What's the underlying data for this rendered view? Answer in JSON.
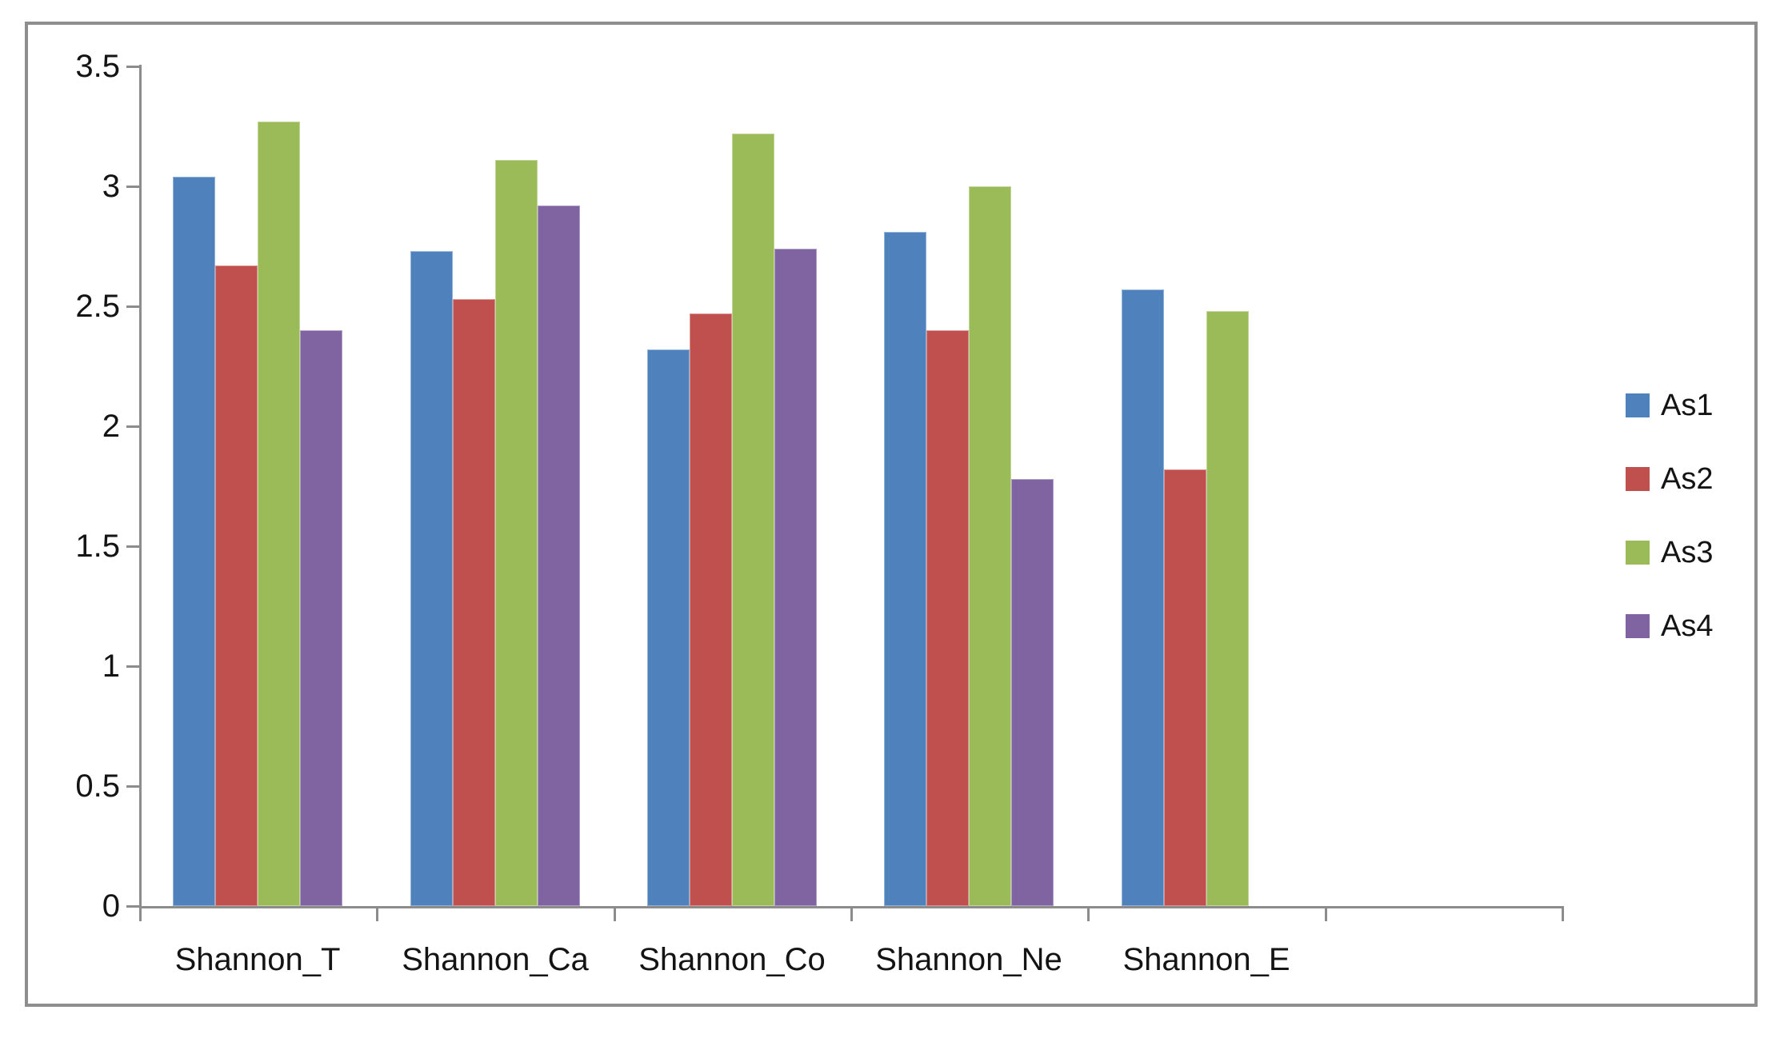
{
  "chart_data": {
    "type": "bar",
    "title": "",
    "xlabel": "",
    "ylabel": "",
    "categories": [
      "Shannon_T",
      "Shannon_Ca",
      "Shannon_Co",
      "Shannon_Ne",
      "Shannon_E"
    ],
    "series": [
      {
        "name": "As1",
        "color": "#4F81BD",
        "values": [
          3.04,
          2.73,
          2.32,
          2.81,
          2.57
        ]
      },
      {
        "name": "As2",
        "color": "#C0504D",
        "values": [
          2.67,
          2.53,
          2.47,
          2.4,
          1.82
        ]
      },
      {
        "name": "As3",
        "color": "#9BBB59",
        "values": [
          3.27,
          3.11,
          3.22,
          3.0,
          2.48
        ]
      },
      {
        "name": "As4",
        "color": "#8064A2",
        "values": [
          2.4,
          2.92,
          2.74,
          1.78,
          0
        ]
      }
    ],
    "ylim": [
      0,
      3.5
    ],
    "ytick_labels": [
      "0",
      "0.5",
      "1",
      "1.5",
      "2",
      "2.5",
      "3",
      "3.5"
    ],
    "x_slots": 6,
    "grid": false,
    "legend_position": "right",
    "legend_items": [
      "As1",
      "As2",
      "As3",
      "As4"
    ],
    "colors": {
      "axis": "#8C8C8C",
      "frame_border": "#8E8E8E",
      "text": "#141414",
      "background": "#FFFFFF"
    }
  }
}
